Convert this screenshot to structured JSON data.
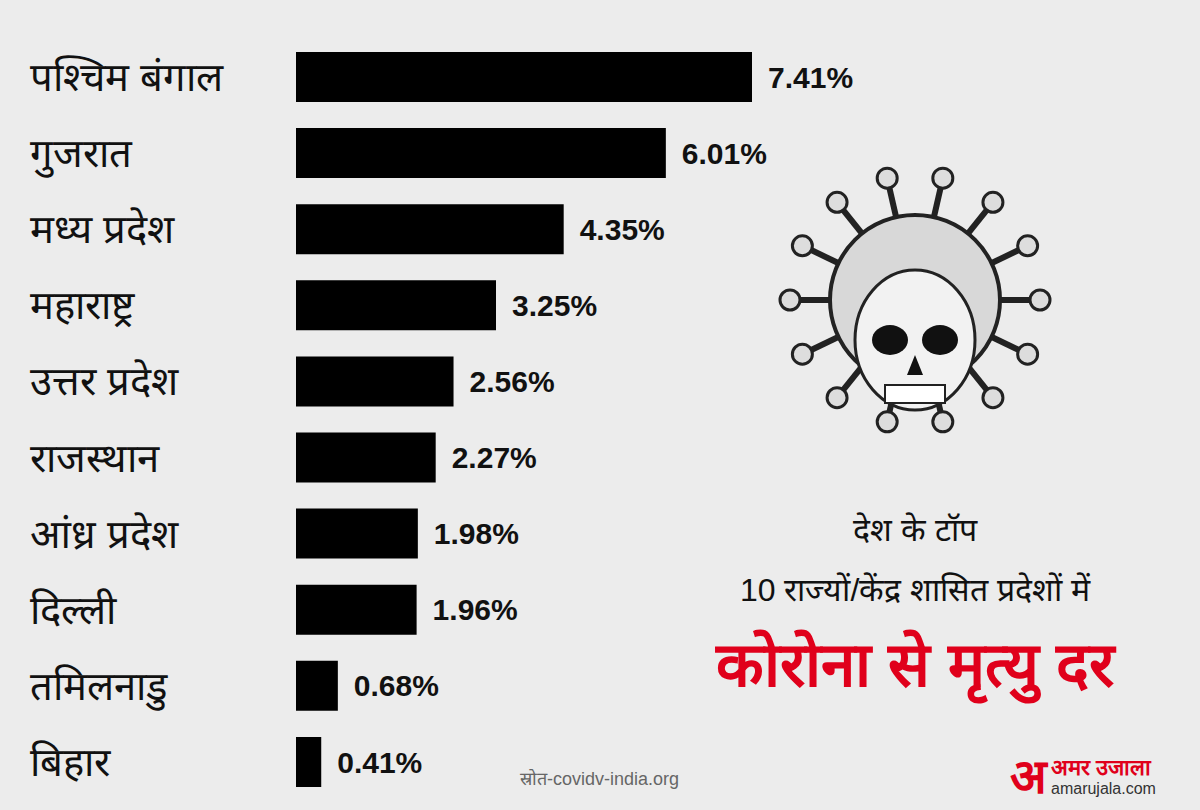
{
  "chart_data": {
    "type": "bar",
    "orientation": "horizontal",
    "title": "कोरोना से मृत्यु दर",
    "subtitle": "देश के टॉप\n10 राज्यों/केंद्र शासित प्रदेशों में",
    "categories": [
      "पश्चिम बंगाल",
      "गुजरात",
      "मध्य प्रदेश",
      "महाराष्ट्र",
      "उत्तर प्रदेश",
      "राजस्थान",
      "आंध्र प्रदेश",
      "दिल्ली",
      "तमिलनाडु",
      "बिहार"
    ],
    "values": [
      7.41,
      6.01,
      4.35,
      3.25,
      2.56,
      2.27,
      1.98,
      1.96,
      0.68,
      0.41
    ],
    "value_labels": [
      "7.41%",
      "6.01%",
      "4.35%",
      "3.25%",
      "2.56%",
      "2.27%",
      "1.98%",
      "1.96%",
      "0.68%",
      "0.41%"
    ],
    "color": "#000000",
    "xlim": [
      0,
      7.41
    ],
    "data_labels": true,
    "tick_labels": "y",
    "grid": false,
    "annotations": [
      "स्रोत-covidv-india.org",
      "अ",
      "अमर उजाला",
      "amarujala.com"
    ]
  }
}
